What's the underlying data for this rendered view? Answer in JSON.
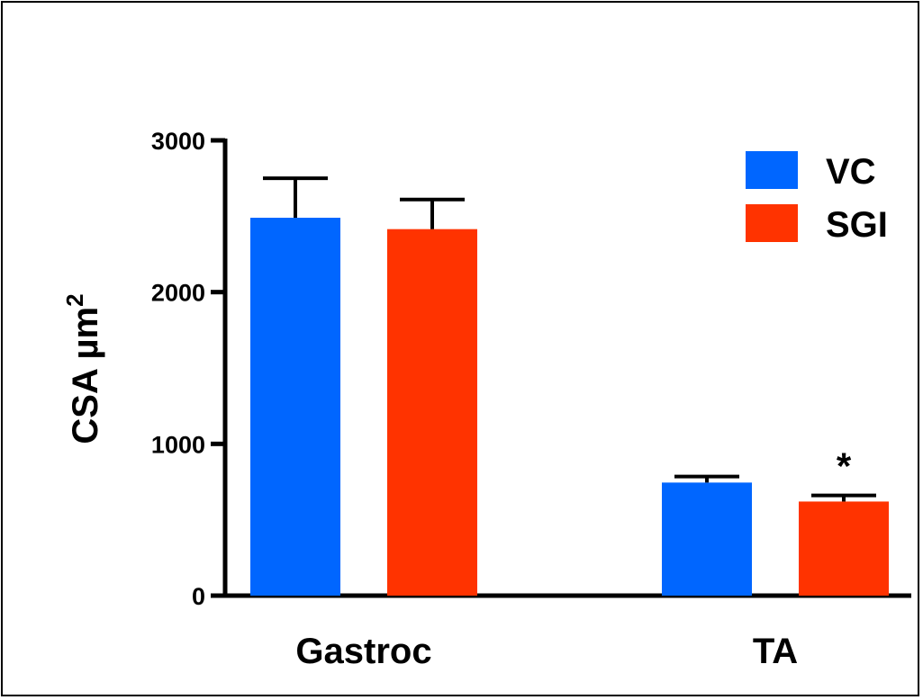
{
  "chart_data": {
    "type": "bar",
    "title": "",
    "xlabel": "",
    "ylabel": "CSA µm",
    "ylabel_superscript": "2",
    "ylim": [
      0,
      3000
    ],
    "yticks": [
      0,
      1000,
      2000,
      3000
    ],
    "ytick_labels": [
      "0",
      "1000",
      "2000",
      "3000"
    ],
    "categories": [
      "Gastroc",
      "TA"
    ],
    "series": [
      {
        "name": "VC",
        "color": "#0066ff",
        "values": [
          2490,
          745
        ],
        "errors": [
          260,
          40
        ]
      },
      {
        "name": "SGI",
        "color": "#ff3300",
        "values": [
          2415,
          620
        ],
        "errors": [
          195,
          40
        ]
      }
    ],
    "annotations": [
      {
        "text": "*",
        "category": "TA",
        "series": "SGI"
      }
    ],
    "legend_position": "top-right",
    "grid": false
  }
}
